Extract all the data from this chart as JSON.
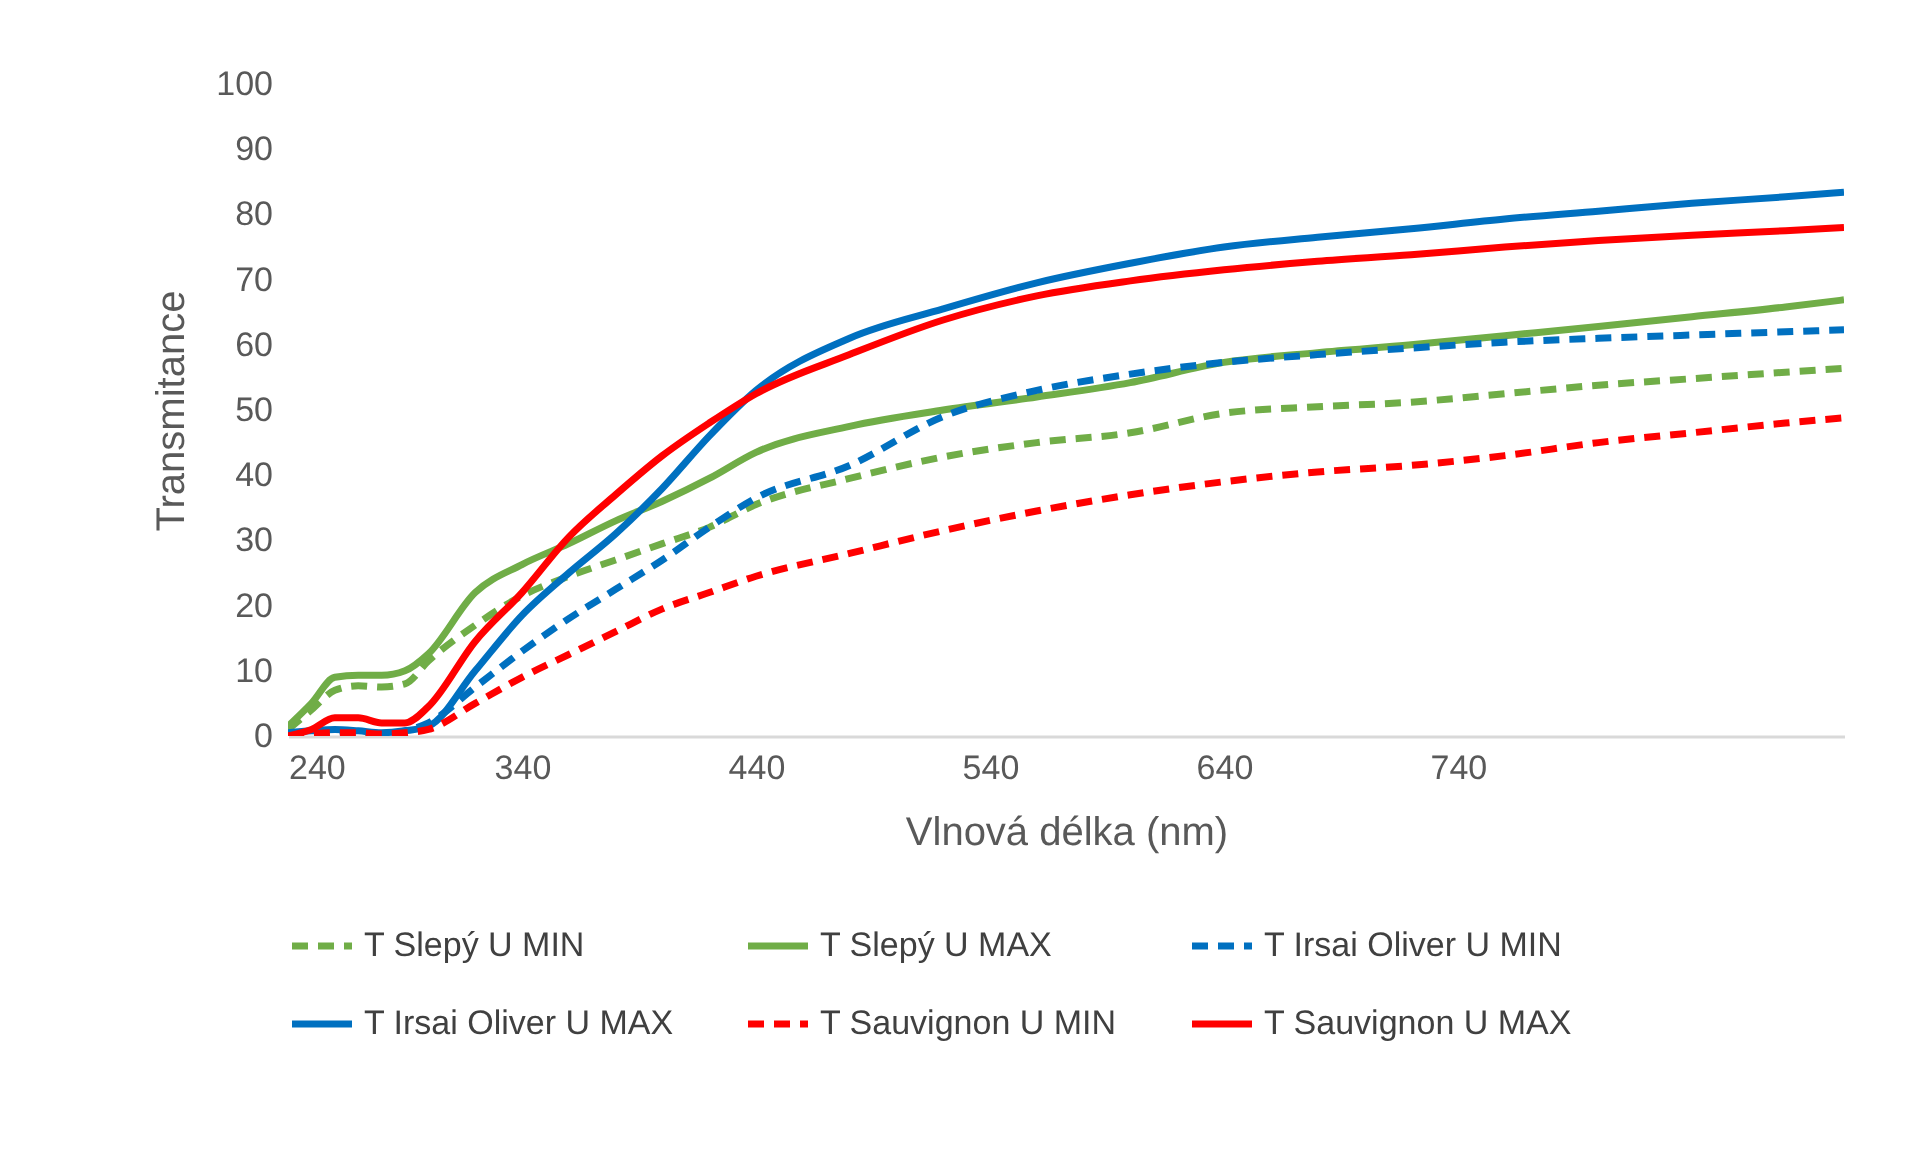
{
  "chart_data": {
    "type": "line",
    "xlabel": "Vlnová délka (nm)",
    "ylabel": "Transmitance",
    "x": [
      240,
      250,
      260,
      270,
      280,
      290,
      300,
      320,
      340,
      360,
      380,
      400,
      420,
      440,
      480,
      520,
      560,
      600,
      640,
      680,
      720,
      760,
      800,
      840,
      880,
      905
    ],
    "xlim": [
      240,
      905
    ],
    "xticks": [
      240,
      340,
      440,
      540,
      640,
      740
    ],
    "ylim": [
      0,
      100
    ],
    "yticks": [
      0,
      10,
      20,
      30,
      40,
      50,
      60,
      70,
      80,
      90,
      100
    ],
    "grid": false,
    "legend": "bottom",
    "series": [
      {
        "name": "T Slepý U MIN",
        "color": "#70ad47",
        "line_style": "dashed",
        "values": [
          1,
          4,
          7,
          7.7,
          7.5,
          8,
          11.5,
          17,
          21.5,
          24.5,
          27,
          29.5,
          32,
          35.5,
          39.5,
          42.8,
          45,
          46.5,
          49.5,
          50.5,
          51.2,
          52.5,
          53.8,
          54.8,
          55.8,
          56.4
        ]
      },
      {
        "name": "T Slepý U MAX",
        "color": "#70ad47",
        "line_style": "solid",
        "values": [
          1.5,
          5,
          9,
          9.3,
          9.3,
          10,
          12.6,
          22,
          26.3,
          29.5,
          33,
          36,
          39.5,
          43.5,
          47.5,
          50,
          52,
          54.2,
          57.3,
          58.8,
          60,
          61.4,
          62.8,
          64.3,
          65.8,
          66.9
        ]
      },
      {
        "name": "T Irsai Oliver U MIN",
        "color": "#0070c0",
        "line_style": "dashed",
        "values": [
          0,
          0.5,
          0.8,
          0.5,
          0.3,
          0.8,
          2,
          7.5,
          13,
          18,
          22.5,
          27,
          32,
          36.5,
          41.5,
          49,
          53,
          55.5,
          57.3,
          58.5,
          59.5,
          60.4,
          61,
          61.5,
          62,
          62.3
        ]
      },
      {
        "name": "T Irsai Oliver U MAX",
        "color": "#0070c0",
        "line_style": "solid",
        "values": [
          0.5,
          0.8,
          1,
          0.8,
          0.5,
          0.8,
          1.5,
          10,
          18.5,
          25,
          31,
          38,
          46,
          53,
          61,
          65.5,
          69.5,
          72.5,
          75,
          76.5,
          77.8,
          79.3,
          80.5,
          81.7,
          82.7,
          83.4
        ]
      },
      {
        "name": "T Sauvignon U MIN",
        "color": "#ff0000",
        "line_style": "dashed",
        "values": [
          0,
          0.3,
          0.5,
          0.5,
          0.3,
          0.5,
          1,
          5,
          9,
          12.5,
          16,
          19.5,
          22,
          24.5,
          28,
          31.5,
          34.5,
          37,
          39,
          40.5,
          41.5,
          43,
          45,
          46.5,
          48,
          48.8
        ]
      },
      {
        "name": "T Sauvignon U MAX",
        "color": "#ff0000",
        "line_style": "solid",
        "values": [
          0,
          1,
          2.8,
          2.8,
          2,
          2,
          4.5,
          14.5,
          22,
          30.5,
          37,
          43,
          48,
          52.5,
          58.5,
          63.8,
          67.5,
          69.8,
          71.5,
          72.8,
          73.8,
          75,
          76,
          76.8,
          77.5,
          78
        ]
      }
    ]
  }
}
